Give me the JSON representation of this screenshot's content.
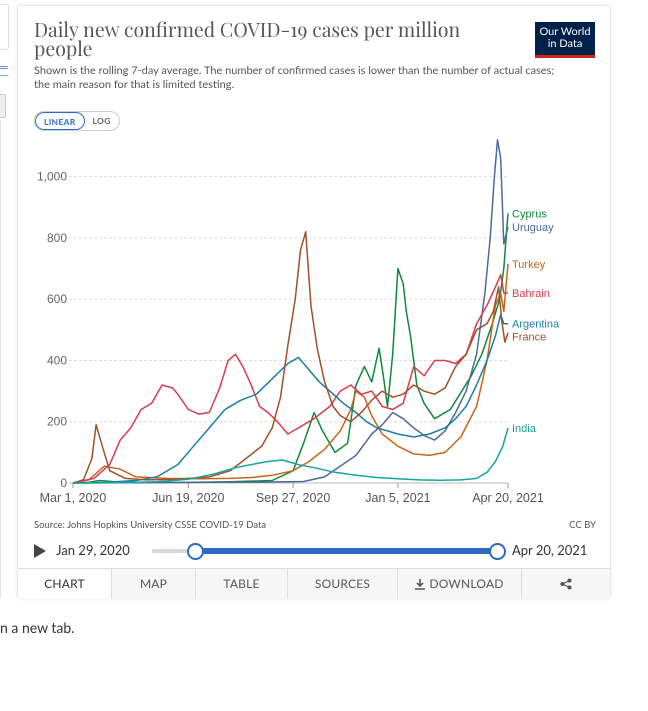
{
  "header": {
    "title": "Daily new confirmed COVID-19 cases per million people",
    "subtitle": "Shown is the rolling 7-day average. The number of confirmed cases is lower than the number of actual cases; the main reason for that is limited testing.",
    "logo_line1": "Our World",
    "logo_line2": "in Data"
  },
  "scale_toggle": {
    "linear": "LINEAR",
    "log": "LOG",
    "selected": "LINEAR"
  },
  "colors": {
    "Cyprus": "#00847e",
    "Uruguay": "#4c6a9c",
    "Turkey": "#c15065",
    "Bahrain": "#e56e5a",
    "Argentina": "#18470f",
    "France": "#a2559c",
    "India": "#00295b",
    "accent": "#2d6bc2"
  },
  "chart_data": {
    "type": "line",
    "title": "Daily new confirmed COVID-19 cases per million people",
    "ylim": [
      0,
      1100
    ],
    "yticks": [
      0,
      200,
      400,
      600,
      800,
      1000
    ],
    "ytick_labels": [
      "0",
      "200",
      "400",
      "600",
      "800",
      "1,000"
    ],
    "x_domain_days": [
      0,
      415
    ],
    "xticks": [
      {
        "day": 0,
        "label": "Mar 1, 2020"
      },
      {
        "day": 110,
        "label": "Jun 19, 2020"
      },
      {
        "day": 210,
        "label": "Sep 27, 2020"
      },
      {
        "day": 310,
        "label": "Jan 5, 2021"
      },
      {
        "day": 415,
        "label": "Apr 20, 2021"
      }
    ],
    "series": [
      {
        "name": "Cyprus",
        "color": "#0e8a3a",
        "points": [
          [
            0,
            0
          ],
          [
            15,
            2
          ],
          [
            25,
            8
          ],
          [
            40,
            4
          ],
          [
            70,
            2
          ],
          [
            110,
            2
          ],
          [
            150,
            4
          ],
          [
            190,
            8
          ],
          [
            210,
            40
          ],
          [
            220,
            130
          ],
          [
            230,
            230
          ],
          [
            238,
            170
          ],
          [
            250,
            100
          ],
          [
            262,
            130
          ],
          [
            270,
            320
          ],
          [
            278,
            380
          ],
          [
            285,
            330
          ],
          [
            292,
            440
          ],
          [
            296,
            350
          ],
          [
            300,
            250
          ],
          [
            305,
            420
          ],
          [
            310,
            700
          ],
          [
            315,
            650
          ],
          [
            318,
            560
          ],
          [
            322,
            480
          ],
          [
            328,
            320
          ],
          [
            335,
            260
          ],
          [
            345,
            210
          ],
          [
            360,
            240
          ],
          [
            380,
            350
          ],
          [
            390,
            420
          ],
          [
            400,
            520
          ],
          [
            407,
            600
          ],
          [
            411,
            700
          ],
          [
            415,
            880
          ]
        ]
      },
      {
        "name": "Uruguay",
        "color": "#4c6a9c",
        "points": [
          [
            0,
            0
          ],
          [
            60,
            1
          ],
          [
            120,
            2
          ],
          [
            180,
            3
          ],
          [
            220,
            5
          ],
          [
            240,
            20
          ],
          [
            255,
            55
          ],
          [
            270,
            90
          ],
          [
            285,
            160
          ],
          [
            295,
            190
          ],
          [
            305,
            230
          ],
          [
            315,
            210
          ],
          [
            325,
            180
          ],
          [
            335,
            155
          ],
          [
            345,
            140
          ],
          [
            355,
            170
          ],
          [
            365,
            230
          ],
          [
            375,
            300
          ],
          [
            385,
            420
          ],
          [
            393,
            620
          ],
          [
            398,
            800
          ],
          [
            402,
            1000
          ],
          [
            405,
            1120
          ],
          [
            408,
            1060
          ],
          [
            411,
            780
          ],
          [
            415,
            835
          ]
        ]
      },
      {
        "name": "Turkey",
        "color": "#c8651b",
        "points": [
          [
            0,
            0
          ],
          [
            15,
            10
          ],
          [
            30,
            55
          ],
          [
            45,
            45
          ],
          [
            60,
            20
          ],
          [
            90,
            15
          ],
          [
            120,
            14
          ],
          [
            150,
            15
          ],
          [
            170,
            18
          ],
          [
            190,
            25
          ],
          [
            210,
            40
          ],
          [
            225,
            70
          ],
          [
            240,
            110
          ],
          [
            255,
            170
          ],
          [
            265,
            240
          ],
          [
            270,
            300
          ],
          [
            278,
            280
          ],
          [
            285,
            220
          ],
          [
            295,
            160
          ],
          [
            310,
            120
          ],
          [
            325,
            95
          ],
          [
            340,
            90
          ],
          [
            355,
            100
          ],
          [
            370,
            150
          ],
          [
            385,
            250
          ],
          [
            395,
            400
          ],
          [
            403,
            580
          ],
          [
            408,
            620
          ],
          [
            411,
            560
          ],
          [
            415,
            715
          ]
        ]
      },
      {
        "name": "Bahrain",
        "color": "#d73c50",
        "points": [
          [
            0,
            0
          ],
          [
            20,
            15
          ],
          [
            35,
            60
          ],
          [
            45,
            140
          ],
          [
            55,
            180
          ],
          [
            65,
            240
          ],
          [
            75,
            260
          ],
          [
            85,
            320
          ],
          [
            95,
            310
          ],
          [
            100,
            290
          ],
          [
            110,
            240
          ],
          [
            120,
            225
          ],
          [
            130,
            230
          ],
          [
            140,
            310
          ],
          [
            148,
            400
          ],
          [
            155,
            420
          ],
          [
            162,
            380
          ],
          [
            170,
            320
          ],
          [
            178,
            250
          ],
          [
            186,
            230
          ],
          [
            195,
            200
          ],
          [
            205,
            160
          ],
          [
            215,
            180
          ],
          [
            230,
            210
          ],
          [
            245,
            250
          ],
          [
            255,
            300
          ],
          [
            265,
            320
          ],
          [
            275,
            290
          ],
          [
            285,
            300
          ],
          [
            295,
            250
          ],
          [
            305,
            240
          ],
          [
            315,
            260
          ],
          [
            325,
            380
          ],
          [
            335,
            350
          ],
          [
            345,
            400
          ],
          [
            355,
            400
          ],
          [
            365,
            390
          ],
          [
            375,
            420
          ],
          [
            385,
            520
          ],
          [
            395,
            580
          ],
          [
            403,
            640
          ],
          [
            408,
            680
          ],
          [
            411,
            620
          ],
          [
            415,
            620
          ]
        ]
      },
      {
        "name": "Argentina",
        "color": "#1a7ea5",
        "points": [
          [
            0,
            0
          ],
          [
            30,
            2
          ],
          [
            60,
            8
          ],
          [
            80,
            20
          ],
          [
            100,
            60
          ],
          [
            115,
            120
          ],
          [
            130,
            180
          ],
          [
            145,
            240
          ],
          [
            160,
            270
          ],
          [
            175,
            290
          ],
          [
            190,
            340
          ],
          [
            205,
            390
          ],
          [
            215,
            410
          ],
          [
            225,
            370
          ],
          [
            235,
            330
          ],
          [
            245,
            300
          ],
          [
            258,
            260
          ],
          [
            270,
            230
          ],
          [
            280,
            200
          ],
          [
            290,
            180
          ],
          [
            300,
            170
          ],
          [
            310,
            160
          ],
          [
            325,
            150
          ],
          [
            340,
            160
          ],
          [
            355,
            180
          ],
          [
            365,
            210
          ],
          [
            375,
            250
          ],
          [
            385,
            320
          ],
          [
            395,
            400
          ],
          [
            403,
            480
          ],
          [
            408,
            550
          ],
          [
            411,
            520
          ],
          [
            415,
            520
          ]
        ]
      },
      {
        "name": "France",
        "color": "#a0502a",
        "points": [
          [
            0,
            0
          ],
          [
            10,
            10
          ],
          [
            18,
            80
          ],
          [
            22,
            190
          ],
          [
            28,
            120
          ],
          [
            35,
            40
          ],
          [
            50,
            15
          ],
          [
            70,
            10
          ],
          [
            100,
            12
          ],
          [
            130,
            20
          ],
          [
            150,
            40
          ],
          [
            165,
            80
          ],
          [
            180,
            120
          ],
          [
            190,
            180
          ],
          [
            198,
            280
          ],
          [
            205,
            450
          ],
          [
            212,
            600
          ],
          [
            217,
            760
          ],
          [
            222,
            820
          ],
          [
            227,
            580
          ],
          [
            233,
            440
          ],
          [
            240,
            330
          ],
          [
            248,
            250
          ],
          [
            255,
            220
          ],
          [
            265,
            200
          ],
          [
            275,
            230
          ],
          [
            285,
            270
          ],
          [
            295,
            300
          ],
          [
            305,
            280
          ],
          [
            315,
            290
          ],
          [
            325,
            320
          ],
          [
            335,
            300
          ],
          [
            345,
            290
          ],
          [
            355,
            310
          ],
          [
            365,
            380
          ],
          [
            375,
            420
          ],
          [
            385,
            500
          ],
          [
            395,
            520
          ],
          [
            401,
            560
          ],
          [
            406,
            640
          ],
          [
            409,
            530
          ],
          [
            412,
            460
          ],
          [
            415,
            490
          ]
        ]
      },
      {
        "name": "India",
        "color": "#17a5a0",
        "points": [
          [
            0,
            0
          ],
          [
            40,
            1
          ],
          [
            80,
            4
          ],
          [
            110,
            12
          ],
          [
            135,
            30
          ],
          [
            155,
            50
          ],
          [
            170,
            60
          ],
          [
            185,
            70
          ],
          [
            200,
            75
          ],
          [
            215,
            60
          ],
          [
            230,
            50
          ],
          [
            250,
            35
          ],
          [
            270,
            25
          ],
          [
            290,
            18
          ],
          [
            310,
            14
          ],
          [
            330,
            10
          ],
          [
            350,
            9
          ],
          [
            370,
            10
          ],
          [
            385,
            15
          ],
          [
            395,
            35
          ],
          [
            403,
            70
          ],
          [
            410,
            120
          ],
          [
            415,
            180
          ]
        ]
      }
    ],
    "end_labels": [
      {
        "name": "Cyprus",
        "y": 880
      },
      {
        "name": "Uruguay",
        "y": 835
      },
      {
        "name": "Turkey",
        "y": 715
      },
      {
        "name": "Bahrain",
        "y": 620
      },
      {
        "name": "Argentina",
        "y": 520
      },
      {
        "name": "France",
        "y": 478
      },
      {
        "name": "India",
        "y": 180
      }
    ]
  },
  "footer": {
    "source": "Source: Johns Hopkins University CSSE COVID-19 Data",
    "license": "CC BY"
  },
  "timeline": {
    "start": "Jan 29, 2020",
    "end": "Apr 20, 2021"
  },
  "tabs": [
    {
      "label": "CHART"
    },
    {
      "label": "MAP"
    },
    {
      "label": "TABLE"
    },
    {
      "label": "SOURCES"
    },
    {
      "label": "DOWNLOAD"
    },
    {
      "label": ""
    }
  ],
  "page_footer_text": "n a new tab."
}
